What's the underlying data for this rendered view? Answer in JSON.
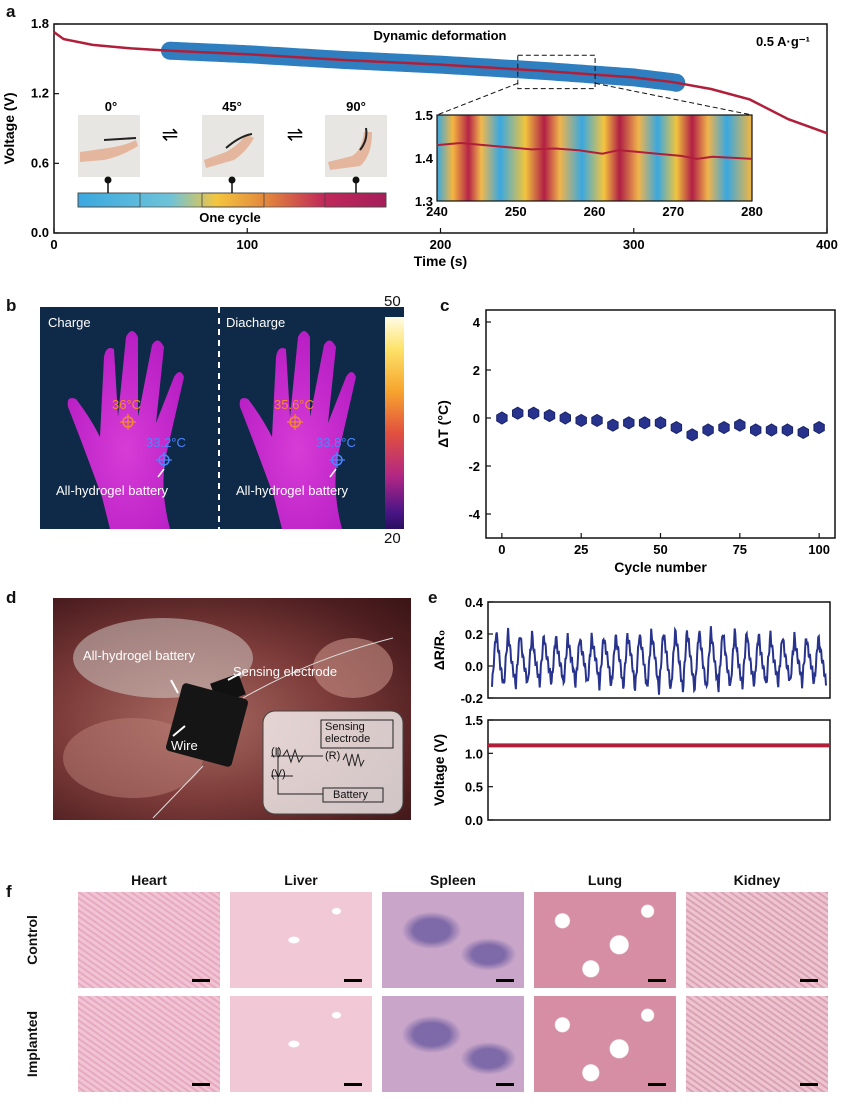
{
  "panel_letters": {
    "a": "a",
    "b": "b",
    "c": "c",
    "d": "d",
    "e": "e",
    "f": "f"
  },
  "colors": {
    "voltage_line": "#b01f3a",
    "deformation_band": "#2f7fc0",
    "marker": "#27338c",
    "signal_line": "#27338c"
  },
  "panel_a": {
    "annotation": "Dynamic deformation",
    "current_label": "0.5 A·g⁻¹",
    "angles": [
      "0°",
      "45°",
      "90°"
    ],
    "cycle_label": "One cycle",
    "arrow_symbol": "⇌"
  },
  "panel_b": {
    "left_title": "Charge",
    "right_title": "Diacharge",
    "left_hot_temp": "36°C",
    "left_cool_temp": "33.2°C",
    "right_hot_temp": "35.6°C",
    "right_cool_temp": "33.8°C",
    "battery_label_left": "All-hydrogel battery",
    "battery_label_right": "All-hydrogel battery",
    "colorbar_max": "50",
    "colorbar_min": "20"
  },
  "panel_d": {
    "battery_label": "All-hydrogel battery",
    "sensing_label": "Sensing electrode",
    "wire_label": "Wire",
    "schematic_sensing_line1": "Sensing",
    "schematic_sensing_line2": "electrode",
    "schematic_I": "(I)",
    "schematic_R": "(R)",
    "schematic_V": "(V)",
    "schematic_battery": "Battery"
  },
  "panel_f": {
    "columns": [
      "Heart",
      "Liver",
      "Spleen",
      "Lung",
      "Kidney"
    ],
    "rows": [
      "Control",
      "Implanted"
    ]
  },
  "chart_data": [
    {
      "id": "a_main",
      "type": "line",
      "xlabel": "Time (s)",
      "ylabel": "Voltage (V)",
      "xlim": [
        0,
        400
      ],
      "ylim": [
        0,
        1.8
      ],
      "xticks": [
        0,
        100,
        200,
        300,
        400
      ],
      "yticks": [
        0.0,
        0.6,
        1.2,
        1.8
      ],
      "x": [
        0,
        5,
        20,
        40,
        60,
        100,
        150,
        200,
        250,
        300,
        320,
        340,
        360,
        380,
        400
      ],
      "y": [
        1.73,
        1.67,
        1.62,
        1.59,
        1.57,
        1.54,
        1.49,
        1.45,
        1.4,
        1.34,
        1.3,
        1.24,
        1.15,
        0.98,
        0.86
      ],
      "deformation_band": {
        "x_start": 60,
        "x_end": 322
      }
    },
    {
      "id": "a_inset",
      "type": "line",
      "xlim": [
        240,
        280
      ],
      "ylim": [
        1.3,
        1.5
      ],
      "xticks": [
        240,
        250,
        260,
        270,
        280
      ],
      "yticks": [
        1.3,
        1.4,
        1.5
      ],
      "x": [
        240,
        243,
        246,
        249,
        252,
        255,
        258,
        261,
        263,
        265,
        268,
        271,
        273,
        275,
        278,
        280
      ],
      "y": [
        1.43,
        1.435,
        1.43,
        1.425,
        1.42,
        1.422,
        1.418,
        1.41,
        1.418,
        1.415,
        1.41,
        1.405,
        1.398,
        1.403,
        1.4,
        1.398
      ]
    },
    {
      "id": "c",
      "type": "scatter",
      "xlabel": "Cycle number",
      "ylabel": "ΔT (°C)",
      "xlim": [
        -5,
        105
      ],
      "ylim": [
        -5,
        4.5
      ],
      "xticks": [
        0,
        25,
        50,
        75,
        100
      ],
      "yticks": [
        -4,
        -2,
        0,
        2,
        4
      ],
      "x": [
        0,
        5,
        10,
        15,
        20,
        25,
        30,
        35,
        40,
        45,
        50,
        55,
        60,
        65,
        70,
        75,
        80,
        85,
        90,
        95,
        100
      ],
      "y": [
        0.0,
        0.2,
        0.2,
        0.1,
        0.0,
        -0.1,
        -0.1,
        -0.3,
        -0.2,
        -0.2,
        -0.2,
        -0.4,
        -0.7,
        -0.5,
        -0.4,
        -0.3,
        -0.5,
        -0.5,
        -0.5,
        -0.6,
        -0.4
      ]
    },
    {
      "id": "e_top",
      "type": "line",
      "ylabel": "ΔR/R₀",
      "ylim": [
        -0.2,
        0.4
      ],
      "yticks": [
        -0.2,
        0.0,
        0.2,
        0.4
      ],
      "cycles": 28,
      "peak_mean": 0.2,
      "trough_mean": -0.13
    },
    {
      "id": "e_bottom",
      "type": "line",
      "ylabel": "Voltage (V)",
      "ylim": [
        0.0,
        1.5
      ],
      "yticks": [
        0.0,
        0.5,
        1.0,
        1.5
      ],
      "y_constant": 1.12
    }
  ]
}
